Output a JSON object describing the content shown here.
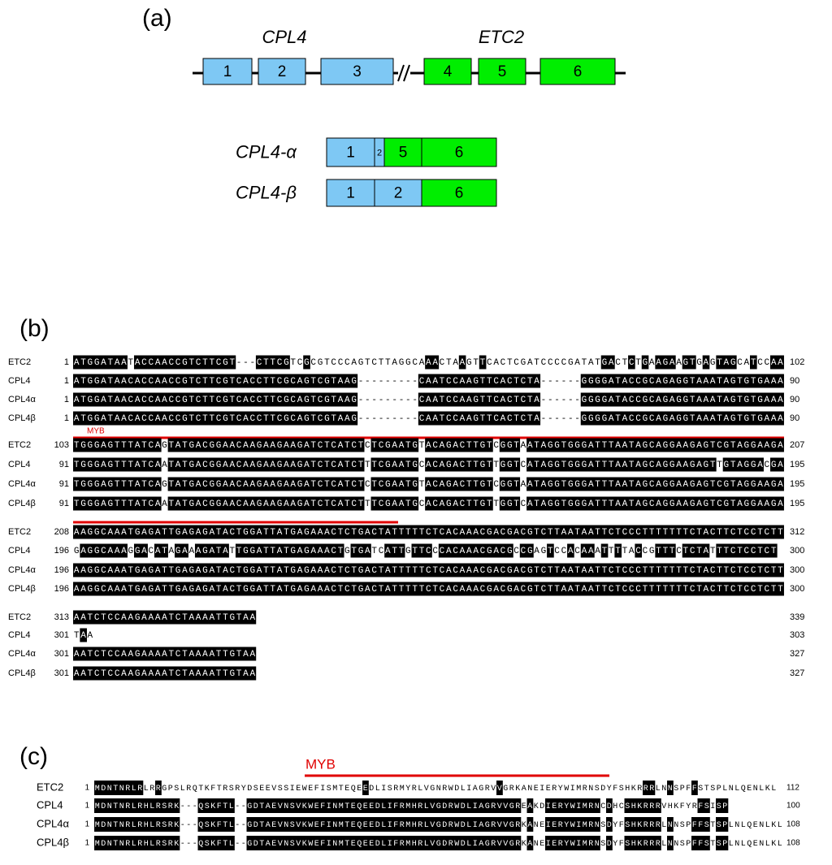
{
  "panel_a": {
    "label": "(a)",
    "genes": [
      "CPL4",
      "ETC2"
    ],
    "exons": [
      {
        "label": "1",
        "color": "#7ec8f4"
      },
      {
        "label": "2",
        "color": "#7ec8f4"
      },
      {
        "label": "3",
        "color": "#7ec8f4"
      },
      {
        "label": "4",
        "color": "#00ee00"
      },
      {
        "label": "5",
        "color": "#00ee00"
      },
      {
        "label": "6",
        "color": "#00ee00"
      }
    ],
    "isoforms": [
      {
        "name": "CPL4-α",
        "exons": [
          {
            "label": "1",
            "color": "#7ec8f4"
          },
          {
            "label": "2",
            "color": "#7ec8f4"
          },
          {
            "label": "5",
            "color": "#00ee00"
          },
          {
            "label": "6",
            "color": "#00ee00"
          }
        ]
      },
      {
        "name": "CPL4-β",
        "exons": [
          {
            "label": "1",
            "color": "#7ec8f4"
          },
          {
            "label": "2",
            "color": "#7ec8f4"
          },
          {
            "label": "6",
            "color": "#00ee00"
          }
        ]
      }
    ]
  },
  "panel_b": {
    "label": "(b)",
    "motif": "MYB",
    "blocks": [
      {
        "rows": [
          {
            "name": "ETC2",
            "start": 1,
            "seq": "ATGGATAATACCAACCGTCTTCGT---CTTCGTCGCGTCCCAGTCTTAGGCAAACTAAGTTCACTCGATCCCCGATATGACTCTGAAGAAGTGAGTAGCATCCAA",
            "end": 102
          },
          {
            "name": "CPL4",
            "start": 1,
            "seq": "ATGGATAACACCAACCGTCTTCGTCACCTTCGCAGTCGTAAG---------CAATCCAAGTTCACTCTA------GGGGATACCGCAGAGGTAAATAGTGTGAAA",
            "end": 90
          },
          {
            "name": "CPL4α",
            "start": 1,
            "seq": "ATGGATAACACCAACCGTCTTCGTCACCTTCGCAGTCGTAAG---------CAATCCAAGTTCACTCTA------GGGGATACCGCAGAGGTAAATAGTGTGAAA",
            "end": 90
          },
          {
            "name": "CPL4β",
            "start": 1,
            "seq": "ATGGATAACACCAACCGTCTTCGTCACCTTCGCAGTCGTAAG---------CAATCCAAGTTCACTCTA------GGGGATACCGCAGAGGTAAATAGTGTGAAA",
            "end": 90
          }
        ]
      },
      {
        "rows": [
          {
            "name": "ETC2",
            "start": 103,
            "seq": "TGGGAGTTTATCAGTATGACGGAACAAGAAGAAGATCTCATCTCTCGAATGTACAGACTTGTCGGTAATAGGTGGGATTTAATAGCAGGAAGAGTCGTAGGAAGA",
            "end": 207
          },
          {
            "name": "CPL4",
            "start": 91,
            "seq": "TGGGAGTTTATCAATATGACGGAACAAGAAGAAGATCTCATCTTTCGAATGCACAGACTTGTTGGTCATAGGTGGGATTTAATAGCAGGAAGAGTTGTAGGACGA",
            "end": 195
          },
          {
            "name": "CPL4α",
            "start": 91,
            "seq": "TGGGAGTTTATCAGTATGACGGAACAAGAAGAAGATCTCATCTCTCGAATGTACAGACTTGTCGGTAATAGGTGGGATTTAATAGCAGGAAGAGTCGTAGGAAGA",
            "end": 195
          },
          {
            "name": "CPL4β",
            "start": 91,
            "seq": "TGGGAGTTTATCAATATGACGGAACAAGAAGAAGATCTCATCTTTCGAATGCACAGACTTGTTGGTCATAGGTGGGATTTAATAGCAGGAAGAGTCGTAGGAAGA",
            "end": 195
          }
        ]
      },
      {
        "rows": [
          {
            "name": "ETC2",
            "start": 208,
            "seq": "AAGGCAAATGAGATTGAGAGATACTGGATTATGAGAAACTCTGACTATTTTTCTCACAAACGACGACGTCTTAATAATTCTCCCTTTTTTTCTACTTCTCCTCTT",
            "end": 312
          },
          {
            "name": "CPL4",
            "start": 196,
            "seq": "GAGGCAAAGGACATAGAAAGATATTGGATTATGAGAAACTGTGATCATTGTTCCCACAAACGACGCCGAGTCCACAAATTTTACCGTTTCTCTATTTCTCCTCT",
            "end": 300
          },
          {
            "name": "CPL4α",
            "start": 196,
            "seq": "AAGGCAAATGAGATTGAGAGATACTGGATTATGAGAAACTCTGACTATTTTTCTCACAAACGACGACGTCTTAATAATTCTCCCTTTTTTTCTACTTCTCCTCTT",
            "end": 300
          },
          {
            "name": "CPL4β",
            "start": 196,
            "seq": "AAGGCAAATGAGATTGAGAGATACTGGATTATGAGAAACTCTGACTATTTTTCTCACAAACGACGACGTCTTAATAATTCTCCCTTTTTTTCTACTTCTCCTCTT",
            "end": 300
          }
        ]
      },
      {
        "rows": [
          {
            "name": "ETC2",
            "start": 313,
            "seq": "AATCTCCAAGAAAATCTAAAATTGTAA",
            "end": 339
          },
          {
            "name": "CPL4",
            "start": 301,
            "seq": "TAA",
            "end": 303
          },
          {
            "name": "CPL4α",
            "start": 301,
            "seq": "AATCTCCAAGAAAATCTAAAATTGTAA",
            "end": 327
          },
          {
            "name": "CPL4β",
            "start": 301,
            "seq": "AATCTCCAAGAAAATCTAAAATTGTAA",
            "end": 327
          }
        ]
      }
    ]
  },
  "panel_c": {
    "label": "(c)",
    "motif": "MYB",
    "blocks": [
      {
        "rows": [
          {
            "name": "ETC2",
            "start": 1,
            "seq": "MDNTNRLRLRRGPSLRQTKFTRSRYDSEEVSSIEWEFISMTEQEEDLISRMYRLVGNRWDLIAGRVVGRKANEIERYWIMRNSDYFSHKRRRLNNSPFFSTSPLNLQENLKL",
            "end": 112
          },
          {
            "name": "CPL4",
            "start": 1,
            "seq": "MDNTNRLRHLRSRK---QSKFTL--GDTAEVNSVKWEFINMTEQEEDLIFRMHRLVGDRWDLIAGRVVGREAKDIERYWIMRNCDHCSHKRRRVHKFYRFSISP",
            "end": 100
          },
          {
            "name": "CPL4α",
            "start": 1,
            "seq": "MDNTNRLRHLRSRK---QSKFTL--GDTAEVNSVKWEFINMTEQEEDLIFRMHRLVGDRWDLIAGRVVGRKANEIERYWIMRNSDYFSHKRRRLNNSPFFSTSPLNLQENLKL",
            "end": 108
          },
          {
            "name": "CPL4β",
            "start": 1,
            "seq": "MDNTNRLRHLRSRK---QSKFTL--GDTAEVNSVKWEFINMTEQEEDLIFRMHRLVGDRWDLIAGRVVGRKANEIERYWIMRNSDYFSHKRRRLNNSPFFSTSPLNLQENLKL",
            "end": 108
          }
        ]
      }
    ]
  }
}
